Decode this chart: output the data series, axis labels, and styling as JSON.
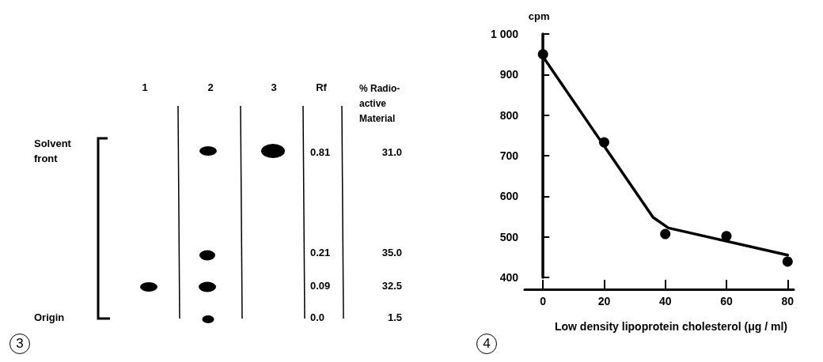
{
  "chart_data": [
    {
      "type": "other",
      "title": "3",
      "categories": [
        "1",
        "2",
        "3",
        "Rf",
        "% Radio-active Material"
      ],
      "annotations": [
        "Solvent front",
        "Origin",
        "0.81",
        "31.0",
        "0.21",
        "35.0",
        "0.09",
        "32.5",
        "0.0",
        "1.5"
      ]
    },
    {
      "type": "scatter",
      "title": "4",
      "xlabel": "Low density lipoprotein cholesterol (μg / ml)",
      "ylabel": "cpm",
      "xlim": [
        -6,
        82
      ],
      "xticks": [
        0,
        20,
        40,
        60,
        80
      ],
      "ylim": [
        400,
        1000
      ],
      "yticks": [
        400,
        500,
        600,
        700,
        800,
        900,
        {
          "value": 1000,
          "label": "1 000"
        }
      ],
      "grid": false,
      "marker": "circle",
      "series": [
        {
          "type": "scatter",
          "color": "#000000",
          "x": [
            0,
            20,
            40,
            60,
            80
          ],
          "values": [
            950,
            733,
            507,
            502,
            439
          ]
        },
        {
          "type": "line",
          "color": "#000000",
          "marker": "none",
          "line_style": "solid",
          "x": [
            0,
            36,
            41,
            80
          ],
          "values": [
            944,
            548,
            522,
            455
          ]
        }
      ]
    }
  ]
}
